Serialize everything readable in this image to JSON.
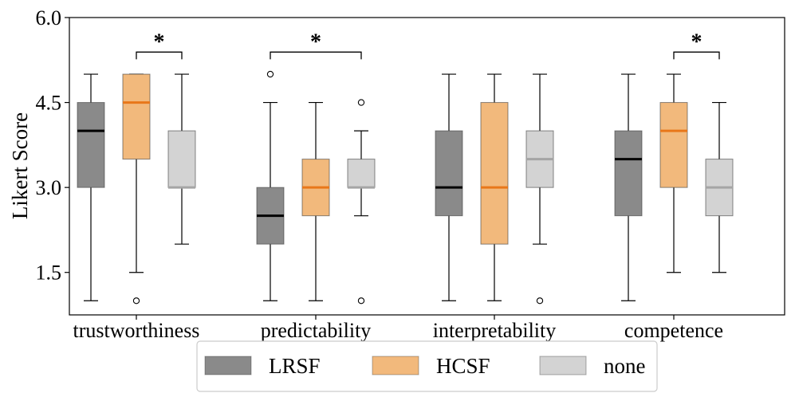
{
  "chart_data": {
    "type": "boxplot",
    "title": "",
    "xlabel": "",
    "ylabel": "Likert Score",
    "ylim": [
      0.75,
      6.0
    ],
    "yticks": [
      1.5,
      3.0,
      4.5,
      6.0
    ],
    "ytick_labels": [
      "1.5",
      "3.0",
      "4.5",
      "6.0"
    ],
    "categories": [
      "trustworthiness",
      "predictability",
      "interpretability",
      "competence"
    ],
    "series": [
      {
        "name": "LRSF",
        "fill": "#8a8a8a",
        "median_color": "#000000",
        "boxes": [
          {
            "category": "trustworthiness",
            "whisker_low": 1.0,
            "q1": 3.0,
            "median": 4.0,
            "q3": 4.5,
            "whisker_high": 5.0,
            "outliers": []
          },
          {
            "category": "predictability",
            "whisker_low": 1.0,
            "q1": 2.0,
            "median": 2.5,
            "q3": 3.0,
            "whisker_high": 4.5,
            "outliers": [
              5.0
            ]
          },
          {
            "category": "interpretability",
            "whisker_low": 1.0,
            "q1": 2.5,
            "median": 3.0,
            "q3": 4.0,
            "whisker_high": 5.0,
            "outliers": []
          },
          {
            "category": "competence",
            "whisker_low": 1.0,
            "q1": 2.5,
            "median": 3.5,
            "q3": 4.0,
            "whisker_high": 5.0,
            "outliers": []
          }
        ]
      },
      {
        "name": "HCSF",
        "fill": "#f2b97c",
        "median_color": "#e8771a",
        "boxes": [
          {
            "category": "trustworthiness",
            "whisker_low": 1.5,
            "q1": 3.5,
            "median": 4.5,
            "q3": 5.0,
            "whisker_high": 5.0,
            "outliers": [
              1.0
            ]
          },
          {
            "category": "predictability",
            "whisker_low": 1.0,
            "q1": 2.5,
            "median": 3.0,
            "q3": 3.5,
            "whisker_high": 4.5,
            "outliers": []
          },
          {
            "category": "interpretability",
            "whisker_low": 1.0,
            "q1": 2.0,
            "median": 3.0,
            "q3": 4.5,
            "whisker_high": 5.0,
            "outliers": []
          },
          {
            "category": "competence",
            "whisker_low": 1.5,
            "q1": 3.0,
            "median": 4.0,
            "q3": 4.5,
            "whisker_high": 5.0,
            "outliers": []
          }
        ]
      },
      {
        "name": "none",
        "fill": "#d3d3d3",
        "median_color": "#a5a5a5",
        "boxes": [
          {
            "category": "trustworthiness",
            "whisker_low": 2.0,
            "q1": 3.0,
            "median": 3.0,
            "q3": 4.0,
            "whisker_high": 5.0,
            "outliers": []
          },
          {
            "category": "predictability",
            "whisker_low": 2.5,
            "q1": 3.0,
            "median": 3.0,
            "q3": 3.5,
            "whisker_high": 4.0,
            "outliers": [
              1.0,
              4.5
            ]
          },
          {
            "category": "interpretability",
            "whisker_low": 2.0,
            "q1": 3.0,
            "median": 3.5,
            "q3": 4.0,
            "whisker_high": 5.0,
            "outliers": [
              1.0
            ]
          },
          {
            "category": "competence",
            "whisker_low": 1.5,
            "q1": 2.5,
            "median": 3.0,
            "q3": 3.5,
            "whisker_high": 4.5,
            "outliers": []
          }
        ]
      }
    ],
    "significance": [
      {
        "category": "trustworthiness",
        "from_series": "HCSF",
        "to_series": "none",
        "label": "*",
        "y": 5.7
      },
      {
        "category": "predictability",
        "from_series": "LRSF",
        "to_series": "none",
        "label": "*",
        "y": 5.7
      },
      {
        "category": "competence",
        "from_series": "HCSF",
        "to_series": "none",
        "label": "*",
        "y": 5.7
      }
    ],
    "legend": {
      "placement": "bottom-center",
      "entries": [
        "LRSF",
        "HCSF",
        "none"
      ]
    },
    "grid": false
  }
}
